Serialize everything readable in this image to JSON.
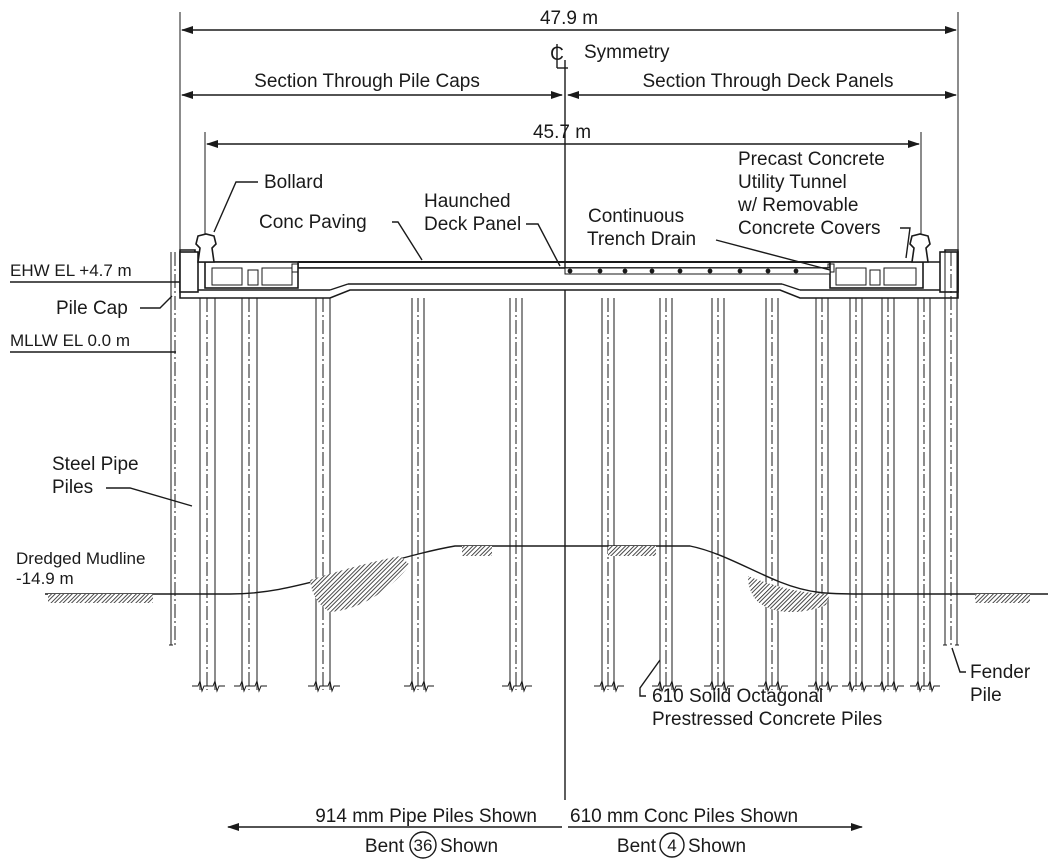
{
  "dimensions": {
    "overall_width": "47.9 m",
    "inner_width": "45.7 m"
  },
  "centerline": {
    "symbol": "℄",
    "label": "Symmetry"
  },
  "sections": {
    "left": "Section Through Pile Caps",
    "right": "Section Through Deck Panels"
  },
  "elevations": {
    "ehw": "EHW  EL  +4.7 m",
    "mllw": "MLLW  EL  0.0 m",
    "mudline_line1": "Dredged Mudline",
    "mudline_line2": "-14.9 m"
  },
  "callouts": {
    "bollard": "Bollard",
    "conc_paving": "Conc Paving",
    "haunched_line1": "Haunched",
    "haunched_line2": "Deck Panel",
    "trench_line1": "Continuous",
    "trench_line2": "Trench Drain",
    "utility_line1": "Precast Concrete",
    "utility_line2": "Utility Tunnel",
    "utility_line3": "w/ Removable",
    "utility_line4": "Concrete Covers",
    "pile_cap": "Pile Cap",
    "steel_line1": "Steel Pipe",
    "steel_line2": "Piles",
    "fender_line1": "Fender",
    "fender_line2": "Pile",
    "octagonal_line1": "610 Soild Octagonal",
    "octagonal_line2": "Prestressed Concrete Piles"
  },
  "bottom_notes": {
    "left_piles": "914 mm Pipe Piles Shown",
    "right_piles": "610 mm Conc Piles Shown",
    "left_bent_word": "Bent",
    "left_bent_number": "36",
    "left_bent_suffix": "Shown",
    "right_bent_word": "Bent",
    "right_bent_number": "4",
    "right_bent_suffix": "Shown"
  }
}
